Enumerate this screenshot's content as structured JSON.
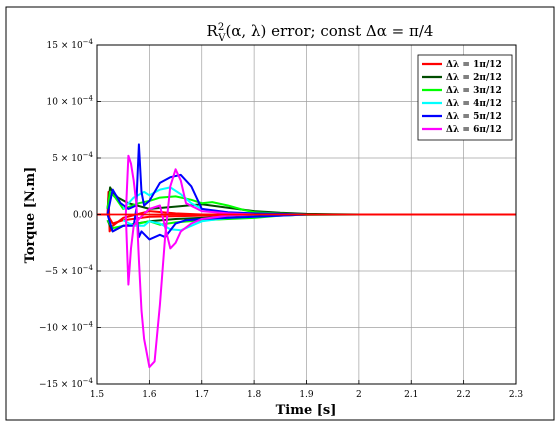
{
  "chart_data": {
    "type": "line",
    "title": "R²_V(α, λ) error; const Δα = π/4",
    "title_parts": {
      "base": "R",
      "sup": "2",
      "sub": "V",
      "rest": "(α, λ) error; const Δα = π/4"
    },
    "xlabel": "Time [s]",
    "ylabel": "Torque [N.m]",
    "xlim": [
      1.5,
      2.3
    ],
    "ylim": [
      -0.0015,
      0.0015
    ],
    "xticks": [
      1.5,
      1.6,
      1.7,
      1.8,
      1.9,
      2.0,
      2.1,
      2.2,
      2.3
    ],
    "xtick_labels": [
      "1.5",
      "1.6",
      "1.7",
      "1.8",
      "1.9",
      "2",
      "2.1",
      "2.2",
      "2.3"
    ],
    "yticks": [
      -0.0015,
      -0.001,
      -0.0005,
      0,
      0.0005,
      0.001,
      0.0015
    ],
    "ytick_labels": [
      {
        "mant": "−15 × 10",
        "exp": "−4"
      },
      {
        "mant": "−10 × 10",
        "exp": "−4"
      },
      {
        "mant": "−5 × 10",
        "exp": "−4"
      },
      {
        "mant": "0.00",
        "exp": ""
      },
      {
        "mant": "5 × 10",
        "exp": "−4"
      },
      {
        "mant": "10 × 10",
        "exp": "−4"
      },
      {
        "mant": "15 × 10",
        "exp": "−4"
      }
    ],
    "grid": true,
    "legend_position": "top-right",
    "series": [
      {
        "name": "Δλ = 1π/12",
        "color": "#ff0000",
        "curves": [
          {
            "x": [
              1.5,
              1.52,
              1.522,
              1.524,
              1.53,
              1.55,
              1.6,
              1.65,
              1.7,
              1.75,
              1.8,
              1.9,
              2.0,
              2.3
            ],
            "y": [
              0,
              0,
              0.0002,
              -0.00015,
              -0.0001,
              -3e-05,
              3e-05,
              1e-05,
              0,
              0,
              0,
              0,
              0,
              0
            ]
          },
          {
            "x": [
              1.5,
              1.52,
              1.53,
              1.55,
              1.6,
              1.7,
              1.8,
              1.9,
              2.0,
              2.3
            ],
            "y": [
              0,
              0,
              -8e-05,
              -5e-05,
              -2e-05,
              -1e-05,
              0,
              0,
              0,
              0
            ]
          }
        ]
      },
      {
        "name": "Δλ = 2π/12",
        "color": "#004d00",
        "curves": [
          {
            "x": [
              1.52,
              1.525,
              1.53,
              1.54,
              1.56,
              1.6,
              1.65,
              1.7,
              1.75,
              1.8,
              1.85,
              1.9,
              1.95,
              2.0
            ],
            "y": [
              5e-05,
              0.00024,
              0.0002,
              0.00015,
              0.0001,
              5e-05,
              7e-05,
              9e-05,
              6e-05,
              3e-05,
              1.5e-05,
              5e-06,
              2e-06,
              0
            ]
          },
          {
            "x": [
              1.52,
              1.53,
              1.55,
              1.6,
              1.65,
              1.7,
              1.75,
              1.8,
              1.85,
              1.9,
              1.95,
              2.0
            ],
            "y": [
              -5e-05,
              -0.00015,
              -0.0001,
              -6e-05,
              -4e-05,
              -3e-05,
              -2e-05,
              -1.5e-05,
              -8e-06,
              -3e-06,
              -1e-06,
              0
            ]
          }
        ]
      },
      {
        "name": "Δλ = 3π/12",
        "color": "#00ff00",
        "curves": [
          {
            "x": [
              1.52,
              1.525,
              1.535,
              1.55,
              1.58,
              1.6,
              1.62,
              1.65,
              1.68,
              1.7,
              1.72,
              1.75,
              1.78,
              1.8,
              1.85,
              1.9
            ],
            "y": [
              5e-05,
              0.0002,
              0.00015,
              5e-05,
              0.0001,
              0.00012,
              0.00015,
              0.00016,
              0.00013,
              0.0001,
              0.00011,
              8e-05,
              4e-05,
              2e-05,
              8e-06,
              0
            ]
          },
          {
            "x": [
              1.52,
              1.53,
              1.55,
              1.58,
              1.6,
              1.62,
              1.65,
              1.7,
              1.75,
              1.8,
              1.85,
              1.9
            ],
            "y": [
              -5e-05,
              -0.00012,
              -0.0001,
              -8e-05,
              -6e-05,
              -9e-05,
              -7e-05,
              -5e-05,
              -4e-05,
              -3e-05,
              -1e-05,
              0
            ]
          }
        ]
      },
      {
        "name": "Δλ = 4π/12",
        "color": "#00ffff",
        "curves": [
          {
            "x": [
              1.55,
              1.57,
              1.59,
              1.6,
              1.62,
              1.64,
              1.66,
              1.68,
              1.7,
              1.73,
              1.76,
              1.8,
              1.85,
              1.9
            ],
            "y": [
              5e-05,
              0.00015,
              0.0002,
              0.00017,
              0.00022,
              0.00024,
              0.00018,
              0.0001,
              5e-05,
              2e-05,
              1e-05,
              5e-06,
              0,
              0
            ]
          },
          {
            "x": [
              1.55,
              1.57,
              1.59,
              1.6,
              1.62,
              1.64,
              1.66,
              1.68,
              1.7,
              1.75,
              1.8,
              1.85,
              1.9
            ],
            "y": [
              -5e-05,
              -0.0001,
              -0.0001,
              -6e-05,
              -8e-05,
              -0.00013,
              -0.00014,
              -0.0001,
              -6e-05,
              -3e-05,
              -2e-05,
              -1e-05,
              0
            ]
          }
        ]
      },
      {
        "name": "Δλ = 5π/12",
        "color": "#0000ff",
        "curves": [
          {
            "x": [
              1.52,
              1.53,
              1.545,
              1.56,
              1.575,
              1.58,
              1.585,
              1.59,
              1.6,
              1.62,
              1.64,
              1.66,
              1.68,
              1.7,
              1.75,
              1.8,
              1.85,
              1.9
            ],
            "y": [
              0,
              0.00022,
              0.0001,
              5e-05,
              8e-05,
              0.00062,
              0.0002,
              8e-05,
              0.00012,
              0.00028,
              0.00033,
              0.00035,
              0.00025,
              5e-05,
              2e-05,
              1e-05,
              5e-06,
              0
            ]
          },
          {
            "x": [
              1.52,
              1.53,
              1.55,
              1.57,
              1.575,
              1.58,
              1.585,
              1.6,
              1.62,
              1.63,
              1.65,
              1.67,
              1.7,
              1.75,
              1.8,
              1.85,
              1.9
            ],
            "y": [
              0,
              -0.00015,
              -0.0001,
              -0.0001,
              5e-05,
              -0.0002,
              -0.00015,
              -0.00022,
              -0.00018,
              -0.0002,
              -8e-05,
              -5e-05,
              -4e-05,
              -3e-05,
              -2e-05,
              -1e-05,
              0
            ]
          }
        ]
      },
      {
        "name": "Δλ = 6π/12",
        "color": "#ff00ff",
        "curves": [
          {
            "x": [
              1.555,
              1.56,
              1.565,
              1.57,
              1.575,
              1.58,
              1.585,
              1.59,
              1.6,
              1.61,
              1.62,
              1.63,
              1.64,
              1.65,
              1.66,
              1.67,
              1.7,
              1.75,
              1.8
            ],
            "y": [
              0,
              0.00052,
              0.00045,
              0.0003,
              0.0001,
              -0.0004,
              -0.00085,
              -0.0011,
              -0.00135,
              -0.0013,
              -0.0008,
              -0.0002,
              0.00025,
              0.0004,
              0.0003,
              0.0001,
              3e-05,
              1e-05,
              0
            ]
          },
          {
            "x": [
              1.555,
              1.56,
              1.565,
              1.57,
              1.58,
              1.6,
              1.62,
              1.64,
              1.65,
              1.66,
              1.68,
              1.7,
              1.75,
              1.8
            ],
            "y": [
              0,
              -0.00062,
              -0.0003,
              -0.0001,
              -4e-05,
              5e-05,
              8e-05,
              -0.0003,
              -0.00025,
              -0.00015,
              -8e-05,
              -4e-05,
              -1e-05,
              0
            ]
          }
        ]
      }
    ]
  }
}
